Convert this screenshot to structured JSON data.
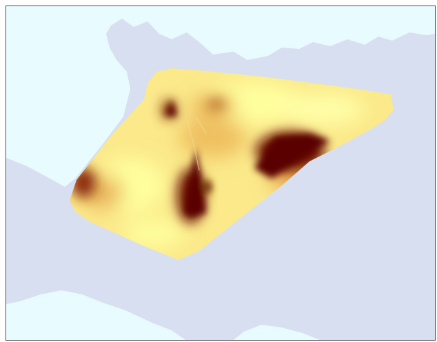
{
  "map": {
    "kind": "interpolated-surface-over-land",
    "colors": {
      "water": "#e8fbff",
      "land": "#d8dff0",
      "surface_low": "#ffff9e",
      "surface_mid": "#f3c96a",
      "surface_high": "#c47a2c",
      "surface_peak": "#5a0000",
      "frame_border": "#4a4a4a"
    },
    "layers": [
      "water",
      "land",
      "interpolated-surface"
    ],
    "legend": null
  }
}
